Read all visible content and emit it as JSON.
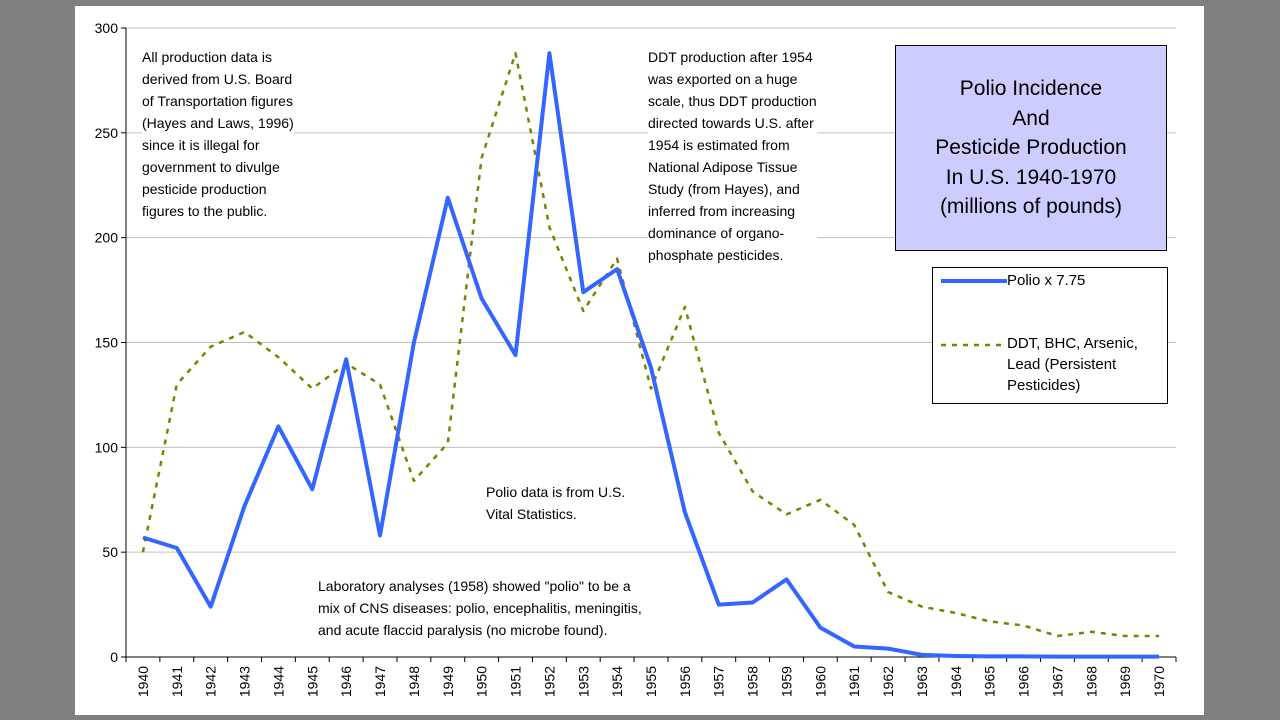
{
  "chart_data": {
    "type": "line",
    "title": "Polio Incidence\nAnd\nPesticide Production\nIn U.S. 1940-1970\n(millions of pounds)",
    "xlabel": "",
    "ylabel": "",
    "ylim": [
      0,
      300
    ],
    "yticks": [
      0,
      50,
      100,
      150,
      200,
      250,
      300
    ],
    "grid": "horizontal",
    "legend_position": "right",
    "categories": [
      "1940",
      "1941",
      "1942",
      "1943",
      "1944",
      "1945",
      "1946",
      "1947",
      "1948",
      "1949",
      "1950",
      "1951",
      "1952",
      "1953",
      "1954",
      "1955",
      "1956",
      "1957",
      "1958",
      "1959",
      "1960",
      "1961",
      "1962",
      "1963",
      "1964",
      "1965",
      "1966",
      "1967",
      "1968",
      "1969",
      "1970"
    ],
    "series": [
      {
        "name": "Polio x 7.75",
        "style": "solid",
        "color": "#3366ff",
        "values": [
          57,
          52,
          24,
          72,
          110,
          80,
          142,
          58,
          150,
          219,
          171,
          144,
          288,
          174,
          185,
          138,
          69,
          25,
          26,
          37,
          14,
          5,
          4,
          1,
          0.5,
          0.3,
          0.3,
          0.2,
          0.2,
          0.2,
          0.2
        ]
      },
      {
        "name": "DDT, BHC, Arsenic,\nLead (Persistent\nPesticides)",
        "style": "dotted",
        "color": "#808000",
        "values": [
          50,
          130,
          148,
          155,
          143,
          128,
          140,
          130,
          84,
          102,
          238,
          288,
          205,
          165,
          190,
          128,
          167,
          107,
          79,
          68,
          75,
          63,
          31,
          24,
          21,
          17,
          15,
          10,
          12,
          10,
          10
        ]
      }
    ]
  },
  "annotations": {
    "production_note": "All production data is\nderived from U.S. Board\nof Transportation figures\n(Hayes and Laws, 1996)\nsince it is illegal for\ngovernment to divulge\npesticide production\nfigures to the public.",
    "ddt_note": "DDT production after 1954\nwas exported on a huge\nscale, thus DDT production\ndirected towards U.S. after\n1954 is estimated from\nNational Adipose Tissue\nStudy (from Hayes), and\ninferred from increasing\ndominance of organo-\nphosphate pesticides.",
    "polio_source_note": "Polio data is from U.S.\nVital Statistics.",
    "lab_note": "Laboratory analyses (1958) showed \"polio\" to be a\nmix of CNS diseases: polio, encephalitis, meningitis,\nand acute flaccid paralysis (no microbe found)."
  }
}
